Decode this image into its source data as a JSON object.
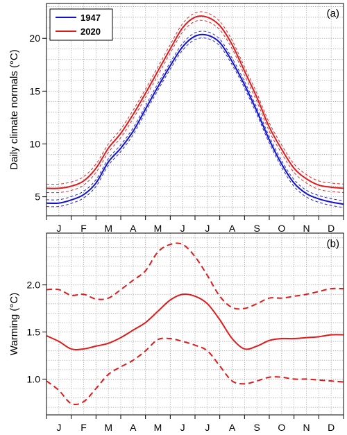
{
  "chart_data": [
    {
      "type": "line",
      "panel_label": "(a)",
      "ylabel": "Daily climate normals (°C)",
      "ylim": [
        3.2,
        23.3
      ],
      "yticks": [
        5,
        10,
        15,
        20
      ],
      "xlim": [
        0,
        12
      ],
      "months": [
        "J",
        "F",
        "M",
        "A",
        "M",
        "J",
        "J",
        "A",
        "S",
        "O",
        "N",
        "D"
      ],
      "grid": true,
      "legend": "top-left",
      "x": [
        0,
        0.5,
        1,
        1.5,
        2,
        2.5,
        3,
        3.5,
        4,
        4.5,
        5,
        5.5,
        6,
        6.5,
        7,
        7.5,
        8,
        8.5,
        9,
        9.5,
        10,
        10.5,
        11,
        11.5,
        12
      ],
      "series": [
        {
          "name": "1947",
          "color": "#1010d0",
          "values": [
            4.4,
            4.4,
            4.7,
            5.2,
            6.3,
            8.3,
            9.6,
            11.2,
            13.3,
            15.4,
            17.4,
            19.2,
            20.2,
            20.3,
            19.6,
            17.8,
            15.6,
            13.1,
            10.4,
            8.1,
            6.3,
            5.3,
            4.8,
            4.5,
            4.3
          ],
          "band": 0.32
        },
        {
          "name": "2020",
          "color": "#e0191b",
          "values": [
            5.8,
            5.8,
            6.0,
            6.5,
            7.7,
            9.6,
            11.0,
            12.8,
            14.8,
            16.9,
            19.0,
            21.0,
            22.0,
            22.0,
            21.2,
            19.4,
            16.9,
            14.4,
            11.6,
            9.5,
            7.7,
            6.7,
            6.1,
            5.9,
            5.8
          ],
          "band": 0.4
        }
      ]
    },
    {
      "type": "line",
      "panel_label": "(b)",
      "ylabel": "Warming (°C)",
      "ylim": [
        0.62,
        2.55
      ],
      "yticks": [
        1.0,
        1.5,
        2.0
      ],
      "xlim": [
        0,
        12
      ],
      "months": [
        "J",
        "F",
        "M",
        "A",
        "M",
        "J",
        "J",
        "A",
        "S",
        "O",
        "N",
        "D"
      ],
      "grid": true,
      "x": [
        0,
        0.5,
        1,
        1.5,
        2,
        2.5,
        3,
        3.5,
        4,
        4.5,
        5,
        5.5,
        6,
        6.5,
        7,
        7.5,
        8,
        8.5,
        9,
        9.5,
        10,
        10.5,
        11,
        11.5,
        12
      ],
      "series": [
        {
          "color": "#e0191b",
          "style": "solid",
          "values": [
            1.46,
            1.4,
            1.32,
            1.32,
            1.35,
            1.38,
            1.44,
            1.52,
            1.6,
            1.72,
            1.84,
            1.9,
            1.88,
            1.8,
            1.63,
            1.43,
            1.32,
            1.35,
            1.41,
            1.43,
            1.43,
            1.44,
            1.45,
            1.47,
            1.47
          ],
          "band": null
        },
        {
          "color": "#e0191b",
          "style": "dashed",
          "values": [
            1.95,
            1.95,
            1.89,
            1.9,
            1.85,
            1.86,
            1.95,
            2.05,
            2.15,
            2.35,
            2.43,
            2.43,
            2.3,
            2.1,
            1.88,
            1.76,
            1.75,
            1.8,
            1.86,
            1.86,
            1.88,
            1.9,
            1.93,
            1.96,
            1.96
          ],
          "band": null
        },
        {
          "color": "#e0191b",
          "style": "dashed",
          "values": [
            0.98,
            0.88,
            0.74,
            0.76,
            0.9,
            1.05,
            1.13,
            1.2,
            1.3,
            1.42,
            1.43,
            1.4,
            1.36,
            1.3,
            1.14,
            0.98,
            0.95,
            0.98,
            1.02,
            1.02,
            1.0,
            1.0,
            0.99,
            0.98,
            0.97
          ],
          "band": null
        }
      ]
    }
  ]
}
